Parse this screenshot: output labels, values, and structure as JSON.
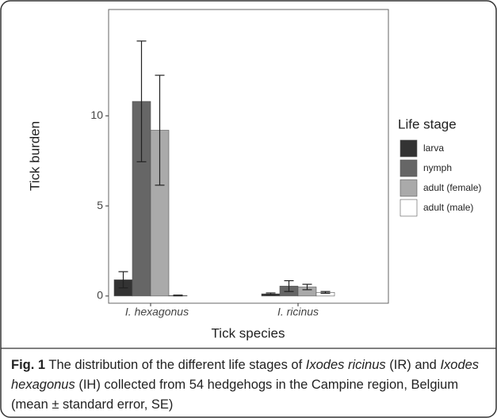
{
  "chart_data": {
    "type": "bar",
    "xlabel": "Tick species",
    "ylabel": "Tick burden",
    "categories": [
      "I. hexagonus",
      "I. ricinus"
    ],
    "legend_title": "Life stage",
    "series": [
      {
        "name": "larva",
        "color": "#333333",
        "values": [
          0.9,
          0.12
        ],
        "errors": [
          0.45,
          0.05
        ]
      },
      {
        "name": "nymph",
        "color": "#666666",
        "values": [
          10.8,
          0.55
        ],
        "errors": [
          3.35,
          0.3
        ]
      },
      {
        "name": "adult (female)",
        "color": "#aaaaaa",
        "values": [
          9.2,
          0.5
        ],
        "errors": [
          3.05,
          0.15
        ]
      },
      {
        "name": "adult (male)",
        "color": "#ffffff",
        "values": [
          0.03,
          0.2
        ],
        "errors": [
          0.02,
          0.05
        ]
      }
    ],
    "ylim": [
      -0.4,
      15.9
    ],
    "yticks": [
      0,
      5,
      10
    ],
    "grid": false,
    "legend": "right"
  },
  "caption": {
    "label": "Fig. 1",
    "parts": [
      " The distribution of the different life stages of ",
      "Ixodes ricinus",
      " (IR) and ",
      "Ixodes hexagonus",
      " (IH) collected from 54 hedgehogs in the Campine region, Belgium (mean ± standard error, SE)"
    ]
  }
}
